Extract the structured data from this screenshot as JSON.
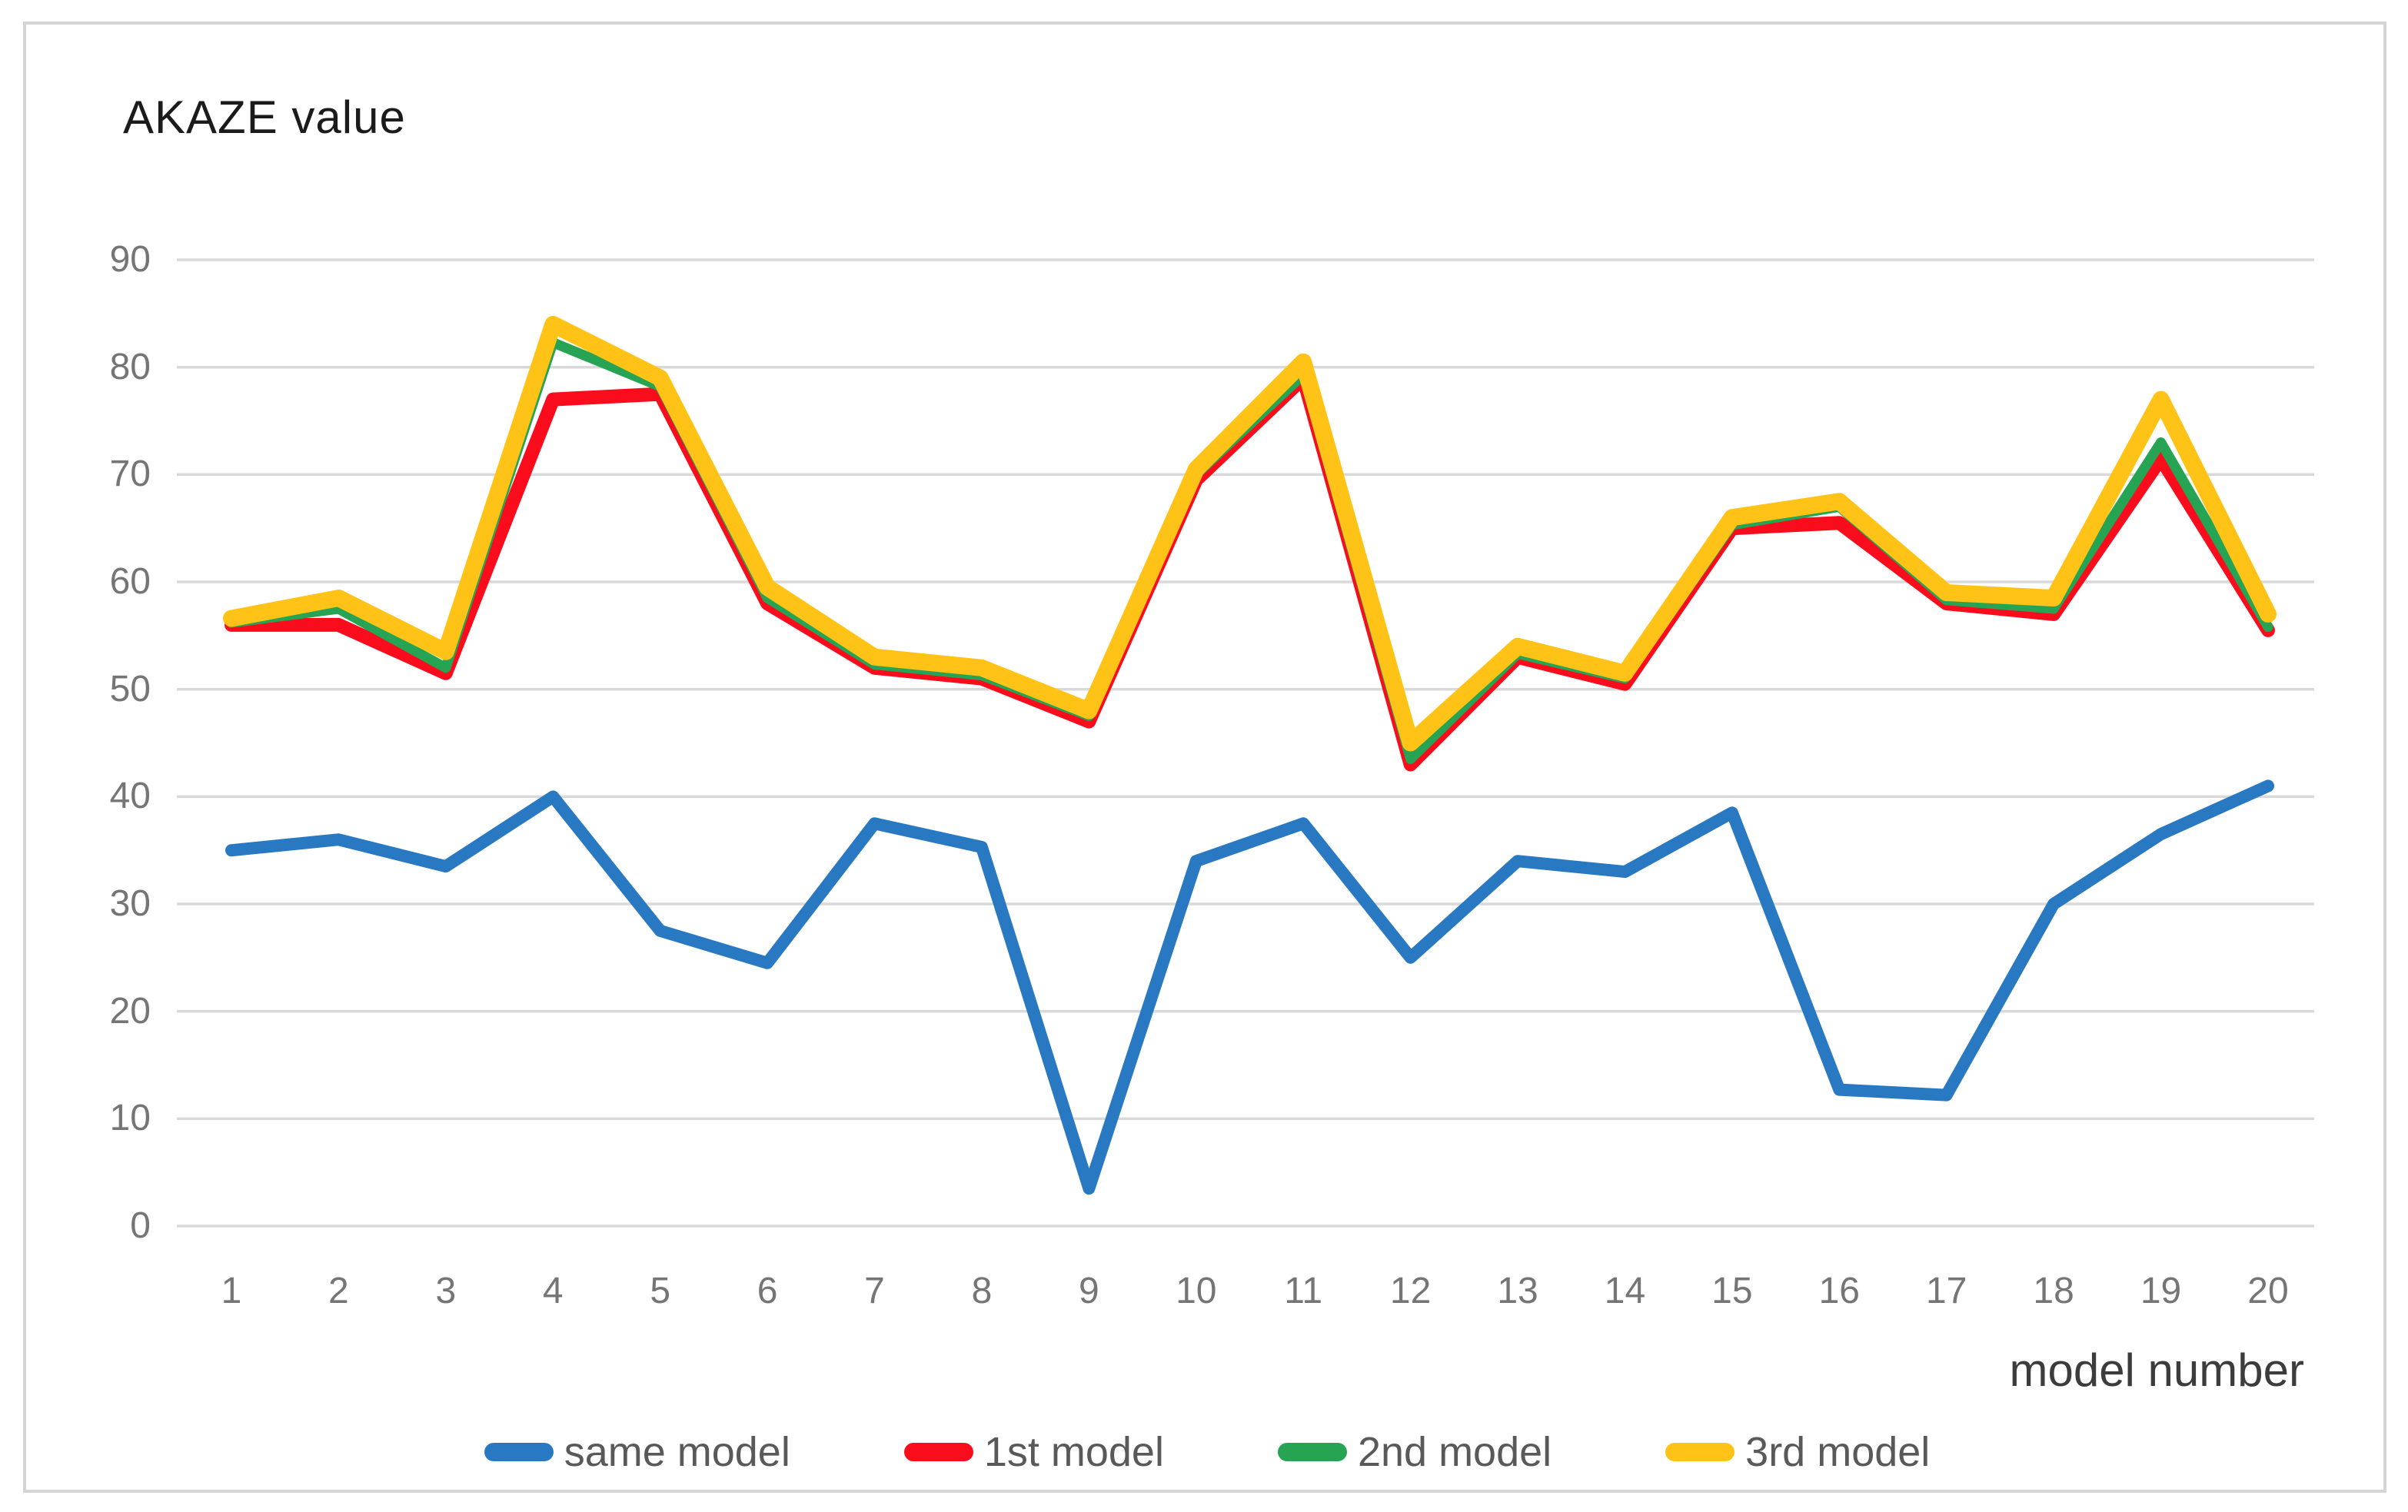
{
  "chart_data": {
    "type": "line",
    "title": "AKAZE value",
    "xlabel": "model number",
    "ylabel": "",
    "x": [
      1,
      2,
      3,
      4,
      5,
      6,
      7,
      8,
      9,
      10,
      11,
      12,
      13,
      14,
      15,
      16,
      17,
      18,
      19,
      20
    ],
    "xtick_labels": [
      "1",
      "2",
      "3",
      "4",
      "5",
      "6",
      "7",
      "8",
      "9",
      "10",
      "11",
      "12",
      "13",
      "14",
      "15",
      "16",
      "17",
      "18",
      "19",
      "20"
    ],
    "ylim": [
      0,
      90
    ],
    "yticks": [
      0,
      10,
      20,
      30,
      40,
      50,
      60,
      70,
      80,
      90
    ],
    "grid": true,
    "legend_position": "bottom",
    "series": [
      {
        "name": "same model",
        "color": "#2979C2",
        "values": [
          35,
          36,
          33.5,
          40,
          27.5,
          24.5,
          37.5,
          35.3,
          3.5,
          34,
          37.5,
          25,
          34,
          33,
          38.5,
          12.7,
          12.2,
          30,
          36.5,
          41
        ]
      },
      {
        "name": "1st model",
        "color": "#F90D1C",
        "values": [
          56,
          56,
          51.5,
          77,
          77.5,
          58,
          52,
          51,
          47,
          69.5,
          79,
          43,
          53,
          50.5,
          65,
          65.5,
          58,
          57,
          71.5,
          55.5
        ]
      },
      {
        "name": "2nd model",
        "color": "#27A453",
        "values": [
          56.2,
          57.5,
          52,
          82.3,
          78.2,
          58.5,
          52.3,
          51.3,
          47.5,
          70,
          79.3,
          43.5,
          53.3,
          51,
          65.3,
          67,
          58.3,
          57.5,
          73,
          55.8
        ]
      },
      {
        "name": "3rd model",
        "color": "#FFC317",
        "values": [
          56.6,
          58.5,
          53.5,
          84,
          79,
          59.5,
          53,
          52,
          48,
          70.5,
          80.5,
          45,
          54,
          51.5,
          66,
          67.5,
          59,
          58.5,
          77,
          57
        ]
      }
    ],
    "gridline_color": "#D9D9D9",
    "tick_label_color": "#757575"
  }
}
